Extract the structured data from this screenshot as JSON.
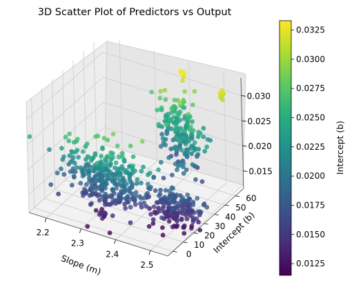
{
  "chart_data": {
    "type": "scatter",
    "title": "3D Scatter Plot of Predictors vs Output",
    "xlabel": "Slope (m)",
    "ylabel": "Intercept (b)",
    "zlabel": "",
    "colorbar_label": "Intercept (b)",
    "colormap": "viridis",
    "xlim": [
      2.15,
      2.55
    ],
    "ylim": [
      -5,
      68
    ],
    "zlim": [
      0.0115,
      0.0335
    ],
    "clim": [
      0.0115,
      0.0333
    ],
    "x_ticks": [
      "2.2",
      "2.3",
      "2.4",
      "2.5"
    ],
    "y_ticks": [
      "0",
      "10",
      "20",
      "30",
      "40",
      "50",
      "60"
    ],
    "z_ticks": [
      "0.015",
      "0.020",
      "0.025",
      "0.030"
    ],
    "colorbar_ticks": [
      "0.0125",
      "0.0150",
      "0.0175",
      "0.0200",
      "0.0225",
      "0.0250",
      "0.0275",
      "0.0300",
      "0.0325"
    ],
    "grid": true,
    "clusters": [
      {
        "x": 2.335,
        "y": 8,
        "z": 0.02,
        "count": 320,
        "spread": [
          0.06,
          3,
          0.0032
        ]
      },
      {
        "x": 2.452,
        "y": 45,
        "z": 0.022,
        "count": 80,
        "spread": [
          0.03,
          6,
          0.0025
        ]
      },
      {
        "x": 2.495,
        "y": 20,
        "z": 0.015,
        "count": 170,
        "spread": [
          0.04,
          4,
          0.002
        ]
      },
      {
        "x": 2.395,
        "y": 57,
        "z": 0.023,
        "count": 110,
        "spread": [
          0.025,
          3,
          0.003
        ]
      }
    ],
    "highlights": [
      {
        "x": 2.405,
        "y": 60,
        "z": 0.0325,
        "count": 6
      },
      {
        "x": 2.525,
        "y": 58,
        "z": 0.0315,
        "count": 10
      },
      {
        "x": 2.345,
        "y": 2,
        "z": 0.014,
        "count": 12
      }
    ]
  }
}
